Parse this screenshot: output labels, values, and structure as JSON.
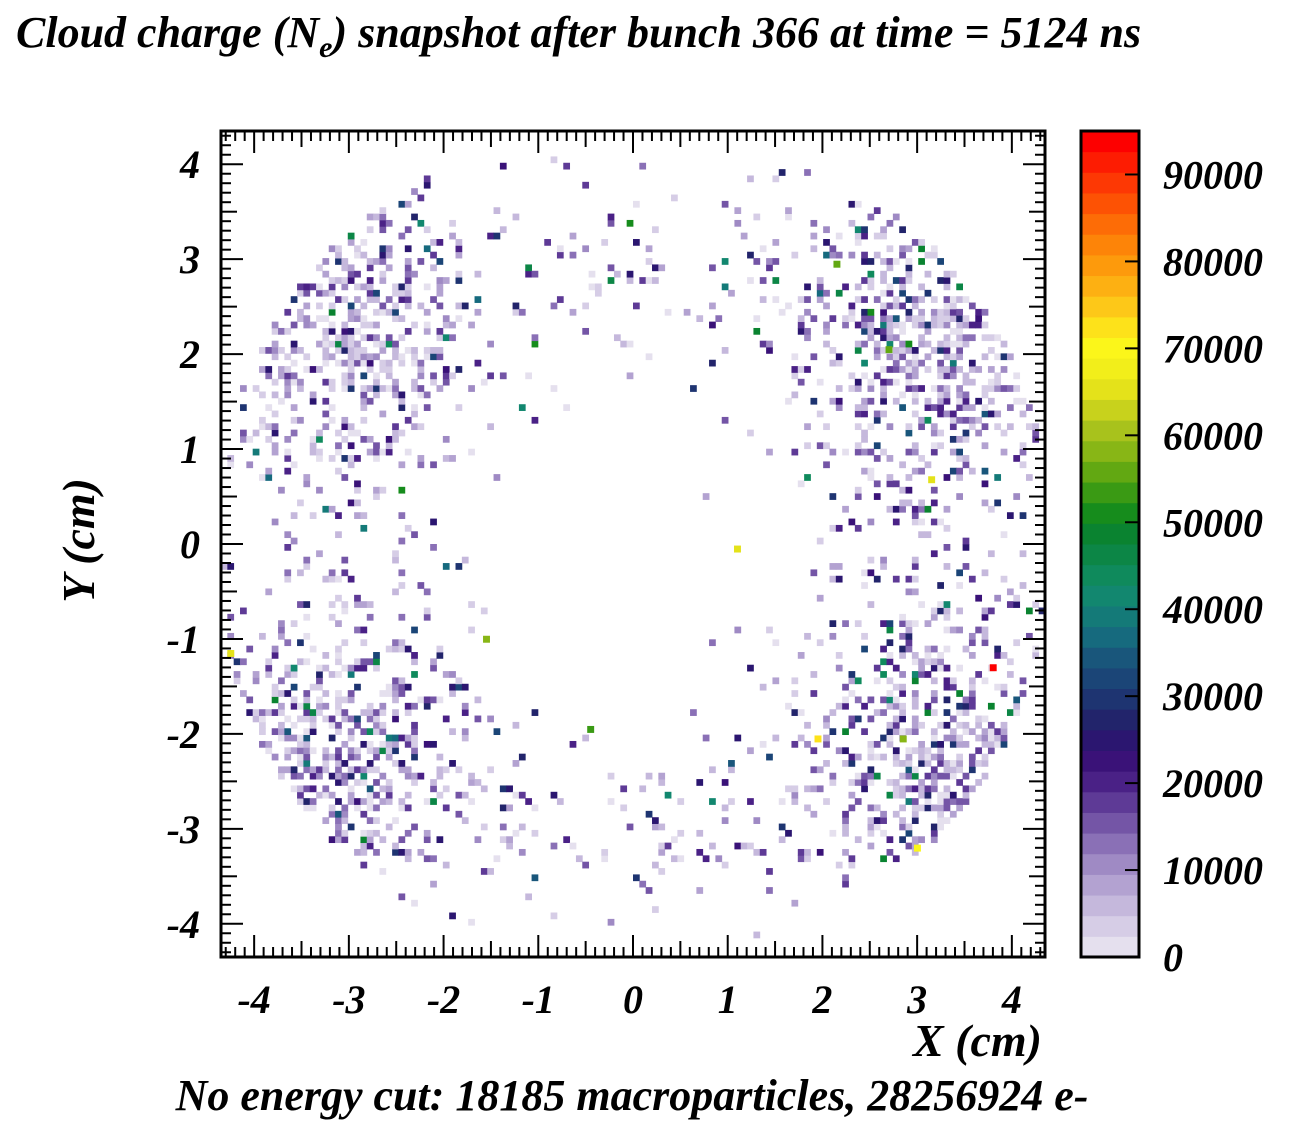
{
  "chart_data": {
    "type": "heatmap",
    "title_main": "Cloud charge (N",
    "title_sub": "e",
    "title_rest": ") snapshot after bunch 366 at time = 5124 ns",
    "xlabel": "X (cm)",
    "ylabel": "Y (cm)",
    "footer": "No energy cut: 18185 macroparticles, 28256924 e-",
    "xlim": [
      -4.35,
      4.35
    ],
    "ylim": [
      -4.35,
      4.35
    ],
    "x_ticks": [
      -4,
      -3,
      -2,
      -1,
      0,
      1,
      2,
      3,
      4
    ],
    "x_tick_labels": [
      "-4",
      "-3",
      "-2",
      "-1",
      "0",
      "1",
      "2",
      "3",
      "4"
    ],
    "y_ticks": [
      -4,
      -3,
      -2,
      -1,
      0,
      1,
      2,
      3,
      4
    ],
    "y_tick_labels": [
      "-4",
      "-3",
      "-2",
      "-1",
      "0",
      "1",
      "2",
      "3",
      "4"
    ],
    "colorbar": {
      "range": [
        0,
        95000
      ],
      "ticks": [
        0,
        10000,
        20000,
        30000,
        40000,
        50000,
        60000,
        70000,
        80000,
        90000
      ],
      "tick_labels": [
        "0",
        "10000",
        "20000",
        "30000",
        "40000",
        "50000",
        "60000",
        "70000",
        "80000",
        "90000"
      ],
      "palette": [
        "#e5e0ee",
        "#d6cde6",
        "#c5b8dc",
        "#b3a2d1",
        "#9f8ac4",
        "#8a70b6",
        "#7455a6",
        "#5e3a96",
        "#4a2186",
        "#3a1278",
        "#2b1670",
        "#22246b",
        "#1e3471",
        "#1b4577",
        "#19567b",
        "#166a7e",
        "#147a78",
        "#12876f",
        "#0f8a5c",
        "#0c8646",
        "#0a8330",
        "#168c1c",
        "#3a9a14",
        "#62a812",
        "#88b616",
        "#a8c21c",
        "#c8d21c",
        "#e4e21a",
        "#f2ee1a",
        "#fbf61a",
        "#fde21a",
        "#fdc818",
        "#fdb012",
        "#fd9a0c",
        "#fd8408",
        "#fd6c06",
        "#fd5204",
        "#fd3804",
        "#fd1c02",
        "#fd0000"
      ],
      "segments_per_10000": 4.2
    },
    "grid": false,
    "bins": 130,
    "distribution": "four elliptical lobes of macroparticle density centered near (±3.2, ±2.3) cm with an empty central region; peak bin ~95000 e- near (3.8, -1.3)",
    "hot_cells": [
      {
        "x": 3.8,
        "y": -1.3,
        "value": 95000
      },
      {
        "x": 3.15,
        "y": 0.68,
        "value": 65000
      },
      {
        "x": 1.1,
        "y": -0.05,
        "value": 65000
      },
      {
        "x": -4.25,
        "y": -1.15,
        "value": 65000
      },
      {
        "x": 1.95,
        "y": -2.05,
        "value": 72000
      },
      {
        "x": 3.0,
        "y": -3.2,
        "value": 70000
      },
      {
        "x": -1.55,
        "y": -1.0,
        "value": 58000
      },
      {
        "x": -0.45,
        "y": -1.95,
        "value": 54000
      },
      {
        "x": 2.85,
        "y": -2.05,
        "value": 57000
      },
      {
        "x": 2.15,
        "y": 2.95,
        "value": 55000
      },
      {
        "x": 2.7,
        "y": 2.05,
        "value": 56000
      }
    ]
  }
}
